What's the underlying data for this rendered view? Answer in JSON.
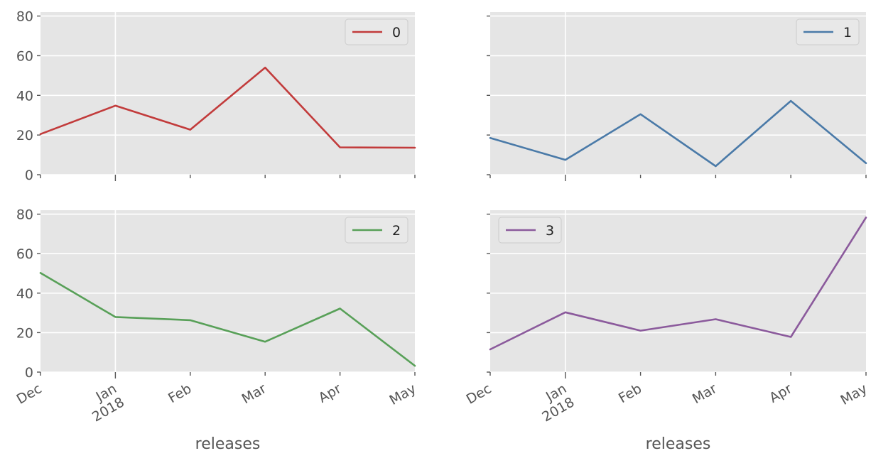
{
  "chart_data": [
    {
      "type": "line",
      "x": [
        "Dec",
        "Jan 2018",
        "Feb",
        "Mar",
        "Apr",
        "May"
      ],
      "series": [
        {
          "name": "0",
          "values": [
            20.5,
            34.8,
            22.7,
            54.0,
            13.8,
            13.6
          ],
          "color": "#c23b3b"
        }
      ],
      "ylim": [
        0,
        82
      ],
      "yticks": [
        "0",
        "20",
        "40",
        "60",
        "80"
      ],
      "show_xtick_labels": false,
      "show_ytick_labels": true,
      "xlabel": "",
      "legend_position": "top-right",
      "grid": true
    },
    {
      "type": "line",
      "x": [
        "Dec",
        "Jan 2018",
        "Feb",
        "Mar",
        "Apr",
        "May"
      ],
      "series": [
        {
          "name": "1",
          "values": [
            18.5,
            7.5,
            30.5,
            4.3,
            37.2,
            5.8
          ],
          "color": "#4a7aa8"
        }
      ],
      "ylim": [
        0,
        82
      ],
      "yticks": [
        "0",
        "20",
        "40",
        "60",
        "80"
      ],
      "show_xtick_labels": false,
      "show_ytick_labels": false,
      "xlabel": "",
      "legend_position": "top-right",
      "grid": true
    },
    {
      "type": "line",
      "x": [
        "Dec",
        "Jan 2018",
        "Feb",
        "Mar",
        "Apr",
        "May"
      ],
      "series": [
        {
          "name": "2",
          "values": [
            50.2,
            27.9,
            26.3,
            15.4,
            32.2,
            3.2
          ],
          "color": "#58a058"
        }
      ],
      "ylim": [
        0,
        82
      ],
      "yticks": [
        "0",
        "20",
        "40",
        "60",
        "80"
      ],
      "show_xtick_labels": true,
      "show_ytick_labels": true,
      "xlabel": "releases",
      "legend_position": "top-right",
      "grid": true
    },
    {
      "type": "line",
      "x": [
        "Dec",
        "Jan 2018",
        "Feb",
        "Mar",
        "Apr",
        "May"
      ],
      "series": [
        {
          "name": "3",
          "values": [
            11.5,
            30.3,
            21.0,
            26.8,
            17.8,
            78.3
          ],
          "color": "#8b5a9c"
        }
      ],
      "ylim": [
        0,
        82
      ],
      "yticks": [
        "0",
        "20",
        "40",
        "60",
        "80"
      ],
      "show_xtick_labels": true,
      "show_ytick_labels": false,
      "xlabel": "releases",
      "legend_position": "top-left",
      "grid": true
    }
  ]
}
